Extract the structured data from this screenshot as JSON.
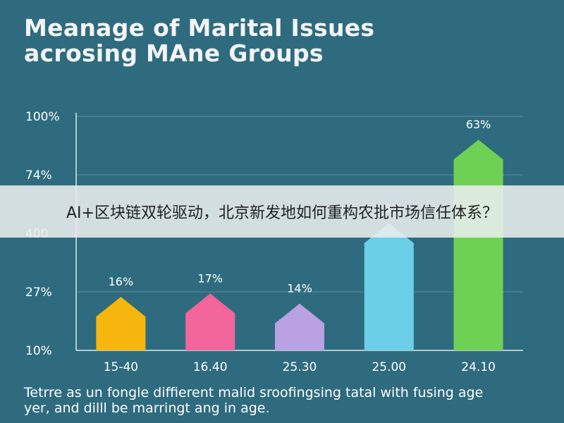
{
  "chart_data": {
    "type": "bar",
    "title_lines": [
      "Meanage of Marital Issues",
      "acrosing MAne Groups"
    ],
    "categories": [
      "15-40",
      "16.40",
      "25.30",
      "25.00",
      "24.10"
    ],
    "values": [
      16,
      17,
      14,
      38,
      63
    ],
    "data_labels": [
      "16%",
      "17%",
      "14%",
      "38%",
      "63%"
    ],
    "bar_colors": [
      "#f6b60d",
      "#f2669b",
      "#b9a1e2",
      "#6bcfe7",
      "#6fd154"
    ],
    "ytick_labels": [
      "100%",
      "74%",
      "400",
      "27%",
      "10%"
    ],
    "ylim": [
      0,
      70
    ],
    "grid": true,
    "legend": "none"
  },
  "caption_lines": [
    "Tetrre as un fongle diffierent malid sroofingsing tatal with fusing age",
    "yer, and dilll be marringt ang in age."
  ],
  "overlay": {
    "banner_text": "AI+区块链双轮驱动，北京新发地如何重构农批市场信任体系？"
  },
  "colors": {
    "background": "#2f6b7e",
    "gridline": "#5c8d9c",
    "axis": "#dfe8ea"
  }
}
